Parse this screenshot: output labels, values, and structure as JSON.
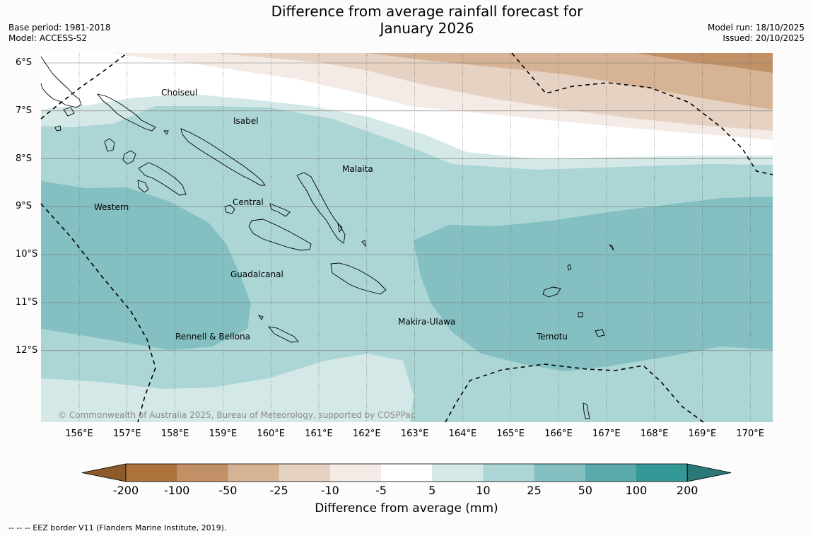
{
  "header": {
    "title_line1": "Difference from average rainfall forecast for",
    "title_line2": "January 2026",
    "base_period": "Base period: 1981-2018",
    "model": "Model: ACCESS-S2",
    "model_run": "Model run: 18/10/2025",
    "issued": "Issued: 20/10/2025"
  },
  "map": {
    "lat_ticks": [
      "6°S",
      "7°S",
      "8°S",
      "9°S",
      "10°S",
      "11°S",
      "12°S"
    ],
    "lon_ticks": [
      "156°E",
      "157°E",
      "158°E",
      "159°E",
      "160°E",
      "161°E",
      "162°E",
      "163°E",
      "164°E",
      "165°E",
      "166°E",
      "167°E",
      "168°E",
      "169°E",
      "170°E"
    ],
    "places": [
      "Choiseul",
      "Isabel",
      "Malaita",
      "Western",
      "Central",
      "Guadalcanal",
      "Makira-Ulawa",
      "Rennell & Bellona",
      "Temotu"
    ],
    "copyright": "© Commonwealth of Australia 2025, Bureau of Meteorology, supported by COSPPac"
  },
  "colorbar": {
    "labels": [
      "-200",
      "-100",
      "-50",
      "-25",
      "-10",
      "-5",
      "5",
      "10",
      "25",
      "50",
      "100",
      "200"
    ],
    "colors": [
      "#8c5a2b",
      "#ac733d",
      "#c29066",
      "#d6b394",
      "#e6d2c2",
      "#f5ebe6",
      "#ffffff",
      "#d5e8e8",
      "#acd5d6",
      "#84c0c1",
      "#5aaaab",
      "#349897",
      "#2a7877"
    ],
    "title": "Difference from average (mm)"
  },
  "footnote": "--  --  -- EEZ border V11 (Flanders Marine Institute, 2019)."
}
